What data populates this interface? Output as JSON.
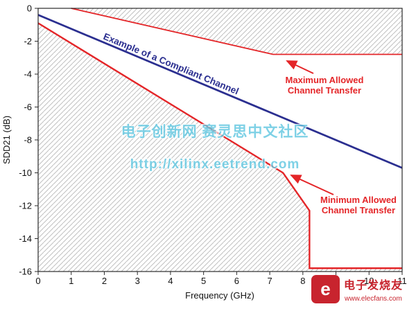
{
  "chart_data": {
    "type": "line",
    "title": "",
    "xlabel": "Frequency (GHz)",
    "ylabel": "SDD21 (dB)",
    "xlim": [
      0,
      11
    ],
    "ylim": [
      -16,
      0
    ],
    "x_ticks": [
      0,
      1,
      2,
      3,
      4,
      5,
      6,
      7,
      8,
      9,
      10,
      11
    ],
    "y_ticks": [
      0,
      -2,
      -4,
      -6,
      -8,
      -10,
      -12,
      -14,
      -16
    ],
    "grid": false,
    "legend": "none (inline annotations with arrows)",
    "series": [
      {
        "role": "example",
        "name": "Example of a Compliant Channel",
        "color": "#2b2f90",
        "width": 2.8,
        "points": [
          [
            0,
            -0.4
          ],
          [
            11,
            -9.7
          ]
        ]
      },
      {
        "role": "max",
        "name": "Maximum Allowed Channel Transfer",
        "color": "#e42528",
        "width": 1.8,
        "points": [
          [
            1,
            0
          ],
          [
            7.1,
            -2.8
          ],
          [
            11,
            -2.8
          ]
        ]
      },
      {
        "role": "min",
        "name": "Minimum Allowed Channel Transfer",
        "color": "#e42528",
        "width": 2.4,
        "points": [
          [
            0,
            -0.9
          ],
          [
            7.4,
            -10
          ],
          [
            8.2,
            -12.3
          ],
          [
            8.2,
            -15.8
          ],
          [
            11,
            -15.8
          ]
        ]
      }
    ],
    "mask": {
      "hatch_color": "#bfbfbf",
      "allowed_region": "white corridor between maximum and minimum limit lines; hatched outside"
    }
  },
  "axis": {
    "xlabel": "Frequency (GHz)",
    "ylabel": "SDD21 (dB)"
  },
  "annotations": {
    "compliant": "Example of a Compliant Channel",
    "max_line1": "Maximum Allowed",
    "max_line2": "Channel Transfer",
    "min_line1": "Minimum Allowed",
    "min_line2": "Channel Transfer"
  },
  "watermark": {
    "line1": "电子创新网 赛灵思中文社区",
    "line2": "http://xilinx.eetrend.com"
  },
  "logo": {
    "glyph": "e",
    "name": "电子发烧友",
    "url": "www.elecfans.com"
  }
}
